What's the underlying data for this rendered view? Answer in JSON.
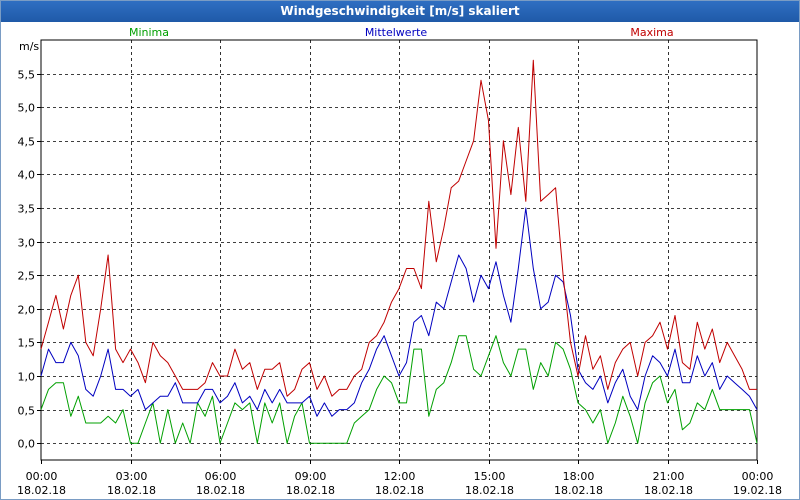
{
  "window": {
    "title": "Windgeschwindigkeit [m/s] skaliert"
  },
  "chart_data": {
    "type": "line",
    "title": "Windgeschwindigkeit [m/s] skaliert",
    "ylabel": "m/s",
    "ylim": [
      -0.25,
      6.0
    ],
    "yticks": [
      0.0,
      0.5,
      1.0,
      1.5,
      2.0,
      2.5,
      3.0,
      3.5,
      4.0,
      4.5,
      5.0,
      5.5
    ],
    "ytick_labels": [
      "0,0",
      "0,5",
      "1,0",
      "1,5",
      "2,0",
      "2,5",
      "3,0",
      "3,5",
      "4,0",
      "4,5",
      "5,0",
      "5,5"
    ],
    "xlim_hours": [
      0,
      24
    ],
    "xticks_hours": [
      0,
      3,
      6,
      9,
      12,
      15,
      18,
      21,
      24
    ],
    "xtick_labels": [
      [
        "00:00",
        "18.02.18"
      ],
      [
        "03:00",
        "18.02.18"
      ],
      [
        "06:00",
        "18.02.18"
      ],
      [
        "09:00",
        "18.02.18"
      ],
      [
        "12:00",
        "18.02.18"
      ],
      [
        "15:00",
        "18.02.18"
      ],
      [
        "18:00",
        "18.02.18"
      ],
      [
        "21:00",
        "18.02.18"
      ],
      [
        "00:00",
        "19.02.18"
      ]
    ],
    "grid": true,
    "legend_placement": "top",
    "series": [
      {
        "name": "Minima",
        "color": "#00a000",
        "points": [
          [
            0,
            0.5
          ],
          [
            0.25,
            0.8
          ],
          [
            0.5,
            0.9
          ],
          [
            0.75,
            0.9
          ],
          [
            1,
            0.4
          ],
          [
            1.25,
            0.7
          ],
          [
            1.5,
            0.3
          ],
          [
            1.75,
            0.3
          ],
          [
            2,
            0.3
          ],
          [
            2.25,
            0.4
          ],
          [
            2.5,
            0.3
          ],
          [
            2.75,
            0.5
          ],
          [
            3,
            0.0
          ],
          [
            3.25,
            0.0
          ],
          [
            3.5,
            0.3
          ],
          [
            3.75,
            0.6
          ],
          [
            4,
            0.0
          ],
          [
            4.25,
            0.5
          ],
          [
            4.5,
            0.0
          ],
          [
            4.75,
            0.3
          ],
          [
            5,
            0.0
          ],
          [
            5.25,
            0.6
          ],
          [
            5.5,
            0.4
          ],
          [
            5.75,
            0.7
          ],
          [
            6,
            0.0
          ],
          [
            6.25,
            0.3
          ],
          [
            6.5,
            0.6
          ],
          [
            6.75,
            0.5
          ],
          [
            7,
            0.6
          ],
          [
            7.25,
            0.0
          ],
          [
            7.5,
            0.6
          ],
          [
            7.75,
            0.3
          ],
          [
            8,
            0.6
          ],
          [
            8.25,
            0.0
          ],
          [
            8.5,
            0.4
          ],
          [
            8.75,
            0.6
          ],
          [
            9,
            0.0
          ],
          [
            9.25,
            0.0
          ],
          [
            9.5,
            0.0
          ],
          [
            9.75,
            0.0
          ],
          [
            10,
            0.0
          ],
          [
            10.25,
            0.0
          ],
          [
            10.5,
            0.3
          ],
          [
            10.75,
            0.4
          ],
          [
            11,
            0.5
          ],
          [
            11.25,
            0.8
          ],
          [
            11.5,
            1.0
          ],
          [
            11.75,
            0.9
          ],
          [
            12,
            0.6
          ],
          [
            12.25,
            0.6
          ],
          [
            12.5,
            1.4
          ],
          [
            12.75,
            1.4
          ],
          [
            13,
            0.4
          ],
          [
            13.25,
            0.8
          ],
          [
            13.5,
            0.9
          ],
          [
            13.75,
            1.2
          ],
          [
            14,
            1.6
          ],
          [
            14.25,
            1.6
          ],
          [
            14.5,
            1.1
          ],
          [
            14.75,
            1.0
          ],
          [
            15,
            1.3
          ],
          [
            15.25,
            1.6
          ],
          [
            15.5,
            1.2
          ],
          [
            15.75,
            1.0
          ],
          [
            16,
            1.4
          ],
          [
            16.25,
            1.4
          ],
          [
            16.5,
            0.8
          ],
          [
            16.75,
            1.2
          ],
          [
            17,
            1.0
          ],
          [
            17.25,
            1.5
          ],
          [
            17.5,
            1.4
          ],
          [
            17.75,
            1.1
          ],
          [
            18,
            0.6
          ],
          [
            18.25,
            0.5
          ],
          [
            18.5,
            0.3
          ],
          [
            18.75,
            0.5
          ],
          [
            19,
            0.0
          ],
          [
            19.25,
            0.3
          ],
          [
            19.5,
            0.7
          ],
          [
            19.75,
            0.4
          ],
          [
            20,
            0.0
          ],
          [
            20.25,
            0.6
          ],
          [
            20.5,
            0.9
          ],
          [
            20.75,
            1.0
          ],
          [
            21,
            0.6
          ],
          [
            21.25,
            0.8
          ],
          [
            21.5,
            0.2
          ],
          [
            21.75,
            0.3
          ],
          [
            22,
            0.6
          ],
          [
            22.25,
            0.5
          ],
          [
            22.5,
            0.8
          ],
          [
            22.75,
            0.5
          ],
          [
            23,
            0.5
          ],
          [
            23.25,
            0.5
          ],
          [
            23.5,
            0.5
          ],
          [
            23.75,
            0.5
          ],
          [
            24,
            0.0
          ]
        ]
      },
      {
        "name": "Mittelwerte",
        "color": "#0000c0",
        "points": [
          [
            0,
            1.0
          ],
          [
            0.25,
            1.4
          ],
          [
            0.5,
            1.2
          ],
          [
            0.75,
            1.2
          ],
          [
            1,
            1.5
          ],
          [
            1.25,
            1.3
          ],
          [
            1.5,
            0.8
          ],
          [
            1.75,
            0.7
          ],
          [
            2,
            1.0
          ],
          [
            2.25,
            1.4
          ],
          [
            2.5,
            0.8
          ],
          [
            2.75,
            0.8
          ],
          [
            3,
            0.7
          ],
          [
            3.25,
            0.8
          ],
          [
            3.5,
            0.5
          ],
          [
            3.75,
            0.6
          ],
          [
            4,
            0.7
          ],
          [
            4.25,
            0.7
          ],
          [
            4.5,
            0.9
          ],
          [
            4.75,
            0.6
          ],
          [
            5,
            0.6
          ],
          [
            5.25,
            0.6
          ],
          [
            5.5,
            0.8
          ],
          [
            5.75,
            0.8
          ],
          [
            6,
            0.6
          ],
          [
            6.25,
            0.7
          ],
          [
            6.5,
            0.9
          ],
          [
            6.75,
            0.6
          ],
          [
            7,
            0.7
          ],
          [
            7.25,
            0.5
          ],
          [
            7.5,
            0.8
          ],
          [
            7.75,
            0.6
          ],
          [
            8,
            0.8
          ],
          [
            8.25,
            0.6
          ],
          [
            8.5,
            0.6
          ],
          [
            8.75,
            0.6
          ],
          [
            9,
            0.7
          ],
          [
            9.25,
            0.4
          ],
          [
            9.5,
            0.6
          ],
          [
            9.75,
            0.4
          ],
          [
            10,
            0.5
          ],
          [
            10.25,
            0.5
          ],
          [
            10.5,
            0.6
          ],
          [
            10.75,
            0.9
          ],
          [
            11,
            1.1
          ],
          [
            11.25,
            1.4
          ],
          [
            11.5,
            1.6
          ],
          [
            11.75,
            1.3
          ],
          [
            12,
            1.0
          ],
          [
            12.25,
            1.2
          ],
          [
            12.5,
            1.8
          ],
          [
            12.75,
            1.9
          ],
          [
            13,
            1.6
          ],
          [
            13.25,
            2.1
          ],
          [
            13.5,
            2.0
          ],
          [
            13.75,
            2.4
          ],
          [
            14,
            2.8
          ],
          [
            14.25,
            2.6
          ],
          [
            14.5,
            2.1
          ],
          [
            14.75,
            2.5
          ],
          [
            15,
            2.3
          ],
          [
            15.25,
            2.7
          ],
          [
            15.5,
            2.2
          ],
          [
            15.75,
            1.8
          ],
          [
            16,
            2.6
          ],
          [
            16.25,
            3.5
          ],
          [
            16.5,
            2.6
          ],
          [
            16.75,
            2.0
          ],
          [
            17,
            2.1
          ],
          [
            17.25,
            2.5
          ],
          [
            17.5,
            2.4
          ],
          [
            17.75,
            1.9
          ],
          [
            18,
            1.1
          ],
          [
            18.25,
            0.9
          ],
          [
            18.5,
            0.8
          ],
          [
            18.75,
            1.0
          ],
          [
            19,
            0.6
          ],
          [
            19.25,
            0.9
          ],
          [
            19.5,
            1.1
          ],
          [
            19.75,
            0.7
          ],
          [
            20,
            0.5
          ],
          [
            20.25,
            1.0
          ],
          [
            20.5,
            1.3
          ],
          [
            20.75,
            1.2
          ],
          [
            21,
            1.0
          ],
          [
            21.25,
            1.4
          ],
          [
            21.5,
            0.9
          ],
          [
            21.75,
            0.9
          ],
          [
            22,
            1.3
          ],
          [
            22.25,
            1.0
          ],
          [
            22.5,
            1.2
          ],
          [
            22.75,
            0.8
          ],
          [
            23,
            1.0
          ],
          [
            23.25,
            0.9
          ],
          [
            23.5,
            0.8
          ],
          [
            23.75,
            0.7
          ],
          [
            24,
            0.5
          ]
        ]
      },
      {
        "name": "Maxima",
        "color": "#c00000",
        "points": [
          [
            0,
            1.4
          ],
          [
            0.25,
            1.8
          ],
          [
            0.5,
            2.2
          ],
          [
            0.75,
            1.7
          ],
          [
            1,
            2.2
          ],
          [
            1.25,
            2.5
          ],
          [
            1.5,
            1.5
          ],
          [
            1.75,
            1.3
          ],
          [
            2,
            2.0
          ],
          [
            2.25,
            2.8
          ],
          [
            2.5,
            1.4
          ],
          [
            2.75,
            1.2
          ],
          [
            3,
            1.4
          ],
          [
            3.25,
            1.2
          ],
          [
            3.5,
            0.9
          ],
          [
            3.75,
            1.5
          ],
          [
            4,
            1.3
          ],
          [
            4.25,
            1.2
          ],
          [
            4.5,
            1.0
          ],
          [
            4.75,
            0.8
          ],
          [
            5,
            0.8
          ],
          [
            5.25,
            0.8
          ],
          [
            5.5,
            0.9
          ],
          [
            5.75,
            1.2
          ],
          [
            6,
            1.0
          ],
          [
            6.25,
            1.0
          ],
          [
            6.5,
            1.4
          ],
          [
            6.75,
            1.1
          ],
          [
            7,
            1.2
          ],
          [
            7.25,
            0.8
          ],
          [
            7.5,
            1.1
          ],
          [
            7.75,
            1.1
          ],
          [
            8,
            1.2
          ],
          [
            8.25,
            0.7
          ],
          [
            8.5,
            0.8
          ],
          [
            8.75,
            1.1
          ],
          [
            9,
            1.2
          ],
          [
            9.25,
            0.8
          ],
          [
            9.5,
            1.0
          ],
          [
            9.75,
            0.7
          ],
          [
            10,
            0.8
          ],
          [
            10.25,
            0.8
          ],
          [
            10.5,
            1.0
          ],
          [
            10.75,
            1.1
          ],
          [
            11,
            1.5
          ],
          [
            11.25,
            1.6
          ],
          [
            11.5,
            1.8
          ],
          [
            11.75,
            2.1
          ],
          [
            12,
            2.3
          ],
          [
            12.25,
            2.6
          ],
          [
            12.5,
            2.6
          ],
          [
            12.75,
            2.3
          ],
          [
            13,
            3.6
          ],
          [
            13.25,
            2.7
          ],
          [
            13.5,
            3.2
          ],
          [
            13.75,
            3.8
          ],
          [
            14,
            3.9
          ],
          [
            14.25,
            4.2
          ],
          [
            14.5,
            4.5
          ],
          [
            14.75,
            5.4
          ],
          [
            15,
            4.8
          ],
          [
            15.25,
            2.9
          ],
          [
            15.5,
            4.5
          ],
          [
            15.75,
            3.7
          ],
          [
            16,
            4.7
          ],
          [
            16.25,
            3.6
          ],
          [
            16.5,
            5.7
          ],
          [
            16.75,
            3.6
          ],
          [
            17,
            3.7
          ],
          [
            17.25,
            3.8
          ],
          [
            17.5,
            2.5
          ],
          [
            17.75,
            1.5
          ],
          [
            18,
            1.0
          ],
          [
            18.25,
            1.6
          ],
          [
            18.5,
            1.1
          ],
          [
            18.75,
            1.3
          ],
          [
            19,
            0.8
          ],
          [
            19.25,
            1.2
          ],
          [
            19.5,
            1.4
          ],
          [
            19.75,
            1.5
          ],
          [
            20,
            1.0
          ],
          [
            20.25,
            1.5
          ],
          [
            20.5,
            1.6
          ],
          [
            20.75,
            1.8
          ],
          [
            21,
            1.4
          ],
          [
            21.25,
            1.9
          ],
          [
            21.5,
            1.2
          ],
          [
            21.75,
            1.1
          ],
          [
            22,
            1.8
          ],
          [
            22.25,
            1.4
          ],
          [
            22.5,
            1.7
          ],
          [
            22.75,
            1.2
          ],
          [
            23,
            1.5
          ],
          [
            23.25,
            1.3
          ],
          [
            23.5,
            1.1
          ],
          [
            23.75,
            0.8
          ],
          [
            24,
            0.8
          ]
        ]
      }
    ]
  }
}
